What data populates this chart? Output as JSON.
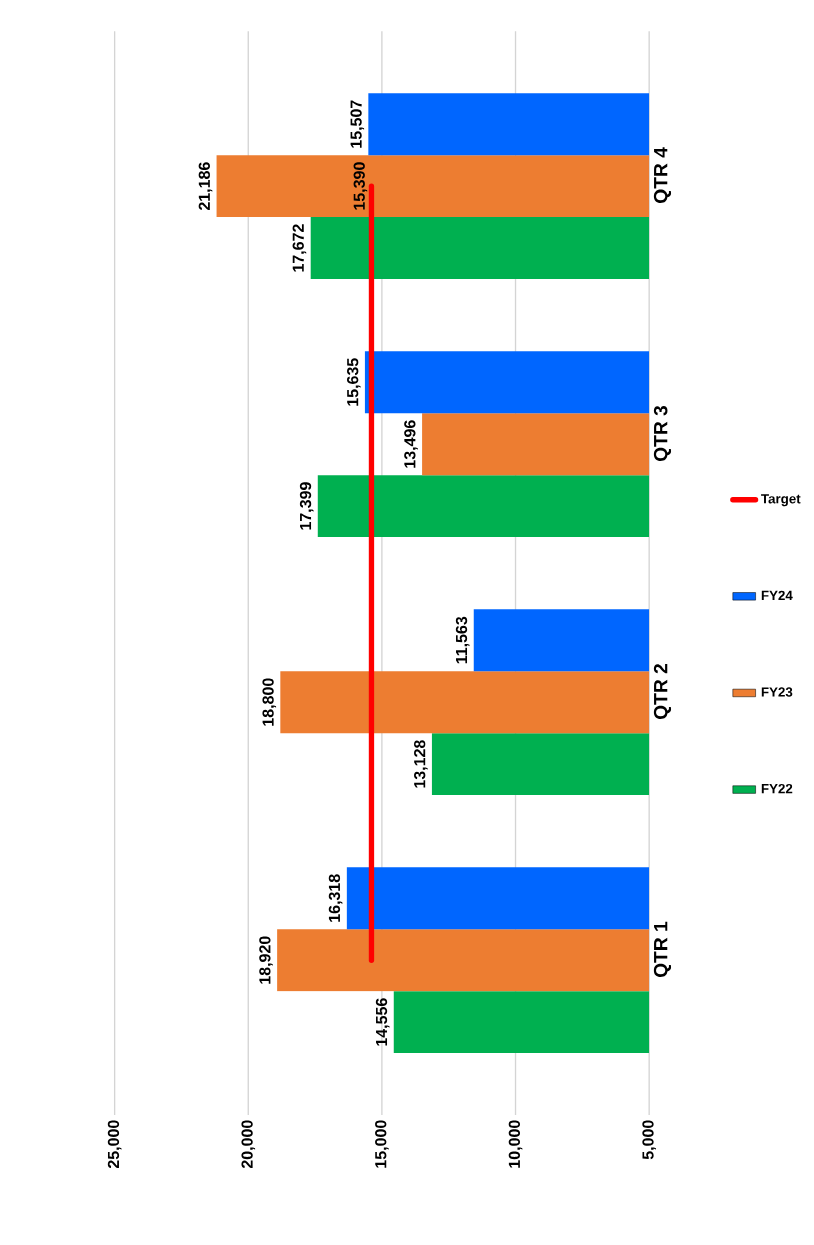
{
  "chart_data": {
    "type": "bar",
    "orientation": "horizontal",
    "categories": [
      "QTR 4",
      "QTR 3",
      "QTR 2",
      "QTR 1"
    ],
    "series": [
      {
        "name": "FY22",
        "color": "#00b050",
        "values": [
          17672,
          17399,
          13128,
          14556
        ],
        "value_labels": [
          "17,672",
          "17,399",
          "13,128",
          "14,556"
        ]
      },
      {
        "name": "FY23",
        "color": "#ed7d31",
        "values": [
          21186,
          13496,
          18800,
          18920
        ],
        "value_labels": [
          "21,186",
          "13,496",
          "18,800",
          "18,920"
        ]
      },
      {
        "name": "FY24",
        "color": "#0066ff",
        "values": [
          15507,
          15635,
          11563,
          16318
        ],
        "value_labels": [
          "15,507",
          "15,635",
          "11,563",
          "16,318"
        ]
      },
      {
        "name": "Target",
        "type": "line",
        "color": "#ff0000",
        "values": [
          15390,
          15390,
          15390,
          15390
        ],
        "value_labels": [
          "15,390",
          null,
          null,
          null
        ]
      }
    ],
    "xlim": [
      25000,
      5000
    ],
    "xticks": [
      {
        "value": 25000,
        "label": "25,000"
      },
      {
        "value": 20000,
        "label": "20,000"
      },
      {
        "value": 15000,
        "label": "15,000"
      },
      {
        "value": 10000,
        "label": "10,000"
      },
      {
        "value": 5000,
        "label": "5,000"
      }
    ],
    "grid": "x",
    "legend": "right"
  }
}
